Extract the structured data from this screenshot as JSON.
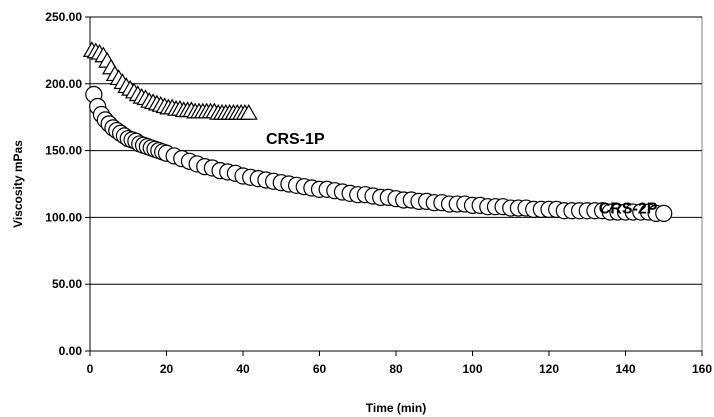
{
  "chart_data": {
    "type": "scatter",
    "title": "",
    "xlabel": "Time (min)",
    "ylabel": "Viscosity mPas",
    "xlim": [
      0,
      160
    ],
    "ylim": [
      0,
      250
    ],
    "x_ticks": [
      0,
      20,
      40,
      60,
      80,
      100,
      120,
      140,
      160
    ],
    "x_tick_labels": [
      "0",
      "20",
      "40",
      "60",
      "80",
      "100",
      "120",
      "140",
      "160"
    ],
    "y_ticks": [
      0,
      50,
      100,
      150,
      200,
      250
    ],
    "y_tick_labels": [
      "0.00",
      "50.00",
      "100.00",
      "150.00",
      "200.00",
      "250.00"
    ],
    "grid": "horizontal",
    "legend": "none",
    "annotations": [
      {
        "text": "CRS-1P",
        "x": 46,
        "y": 155,
        "series": "circles"
      },
      {
        "text": "CRS-2P",
        "x": 133,
        "y": 103,
        "series": "circles-end"
      }
    ],
    "series": [
      {
        "marker": "triangle",
        "x": [
          0.5,
          1.5,
          2.5,
          3.5,
          4.5,
          5.5,
          6.5,
          7.5,
          8.5,
          9.5,
          10.5,
          11.5,
          12.5,
          13.5,
          14.5,
          15.5,
          16.5,
          17.5,
          18.5,
          19.5,
          20.5,
          21.5,
          22.5,
          23.5,
          24.5,
          25.5,
          26.5,
          27.5,
          28.5,
          29.5,
          30.5,
          31.5,
          32.5,
          33.5,
          34.5,
          35.5,
          36.5,
          37.5,
          38.5,
          39.5,
          40.5,
          41.5
        ],
        "y": [
          225,
          224,
          223,
          221,
          217,
          212,
          207,
          204,
          201,
          198,
          196,
          194,
          192,
          190,
          189,
          187,
          186,
          185,
          184,
          183,
          182,
          182,
          181,
          181,
          180,
          180,
          180,
          179,
          179,
          179,
          179,
          179,
          179,
          178,
          178,
          178,
          178,
          178,
          178,
          178,
          178,
          178
        ]
      },
      {
        "marker": "circle",
        "x": [
          1,
          2,
          3,
          4,
          5,
          6,
          7,
          8,
          9,
          10,
          11,
          12,
          13,
          14,
          15,
          16,
          17,
          18,
          19,
          20,
          22,
          24,
          26,
          28,
          30,
          32,
          34,
          36,
          38,
          40,
          42,
          44,
          46,
          48,
          50,
          52,
          54,
          56,
          58,
          60,
          62,
          64,
          66,
          68,
          70,
          72,
          74,
          76,
          78,
          80,
          82,
          84,
          86,
          88,
          90,
          92,
          94,
          96,
          98,
          100,
          102,
          104,
          106,
          108,
          110,
          112,
          114,
          116,
          118,
          120,
          122,
          124,
          126,
          128,
          130,
          132,
          134,
          136,
          138,
          140,
          142,
          144,
          146,
          148,
          150
        ],
        "y": [
          192,
          183,
          177,
          173,
          170,
          167,
          165,
          163,
          161,
          159,
          158,
          157,
          155,
          154,
          153,
          152,
          151,
          150,
          149,
          148,
          146,
          144,
          142,
          140,
          138,
          137,
          135,
          134,
          133,
          131,
          130,
          129,
          128,
          127,
          126,
          125,
          124,
          123,
          122,
          121,
          121,
          120,
          119,
          118,
          117,
          117,
          116,
          115,
          115,
          114,
          113,
          113,
          112,
          112,
          111,
          111,
          110,
          110,
          110,
          109,
          109,
          108,
          108,
          108,
          107,
          107,
          107,
          106,
          106,
          106,
          106,
          105,
          105,
          105,
          105,
          105,
          105,
          104,
          104,
          104,
          104,
          104,
          104,
          103,
          103
        ]
      }
    ]
  }
}
